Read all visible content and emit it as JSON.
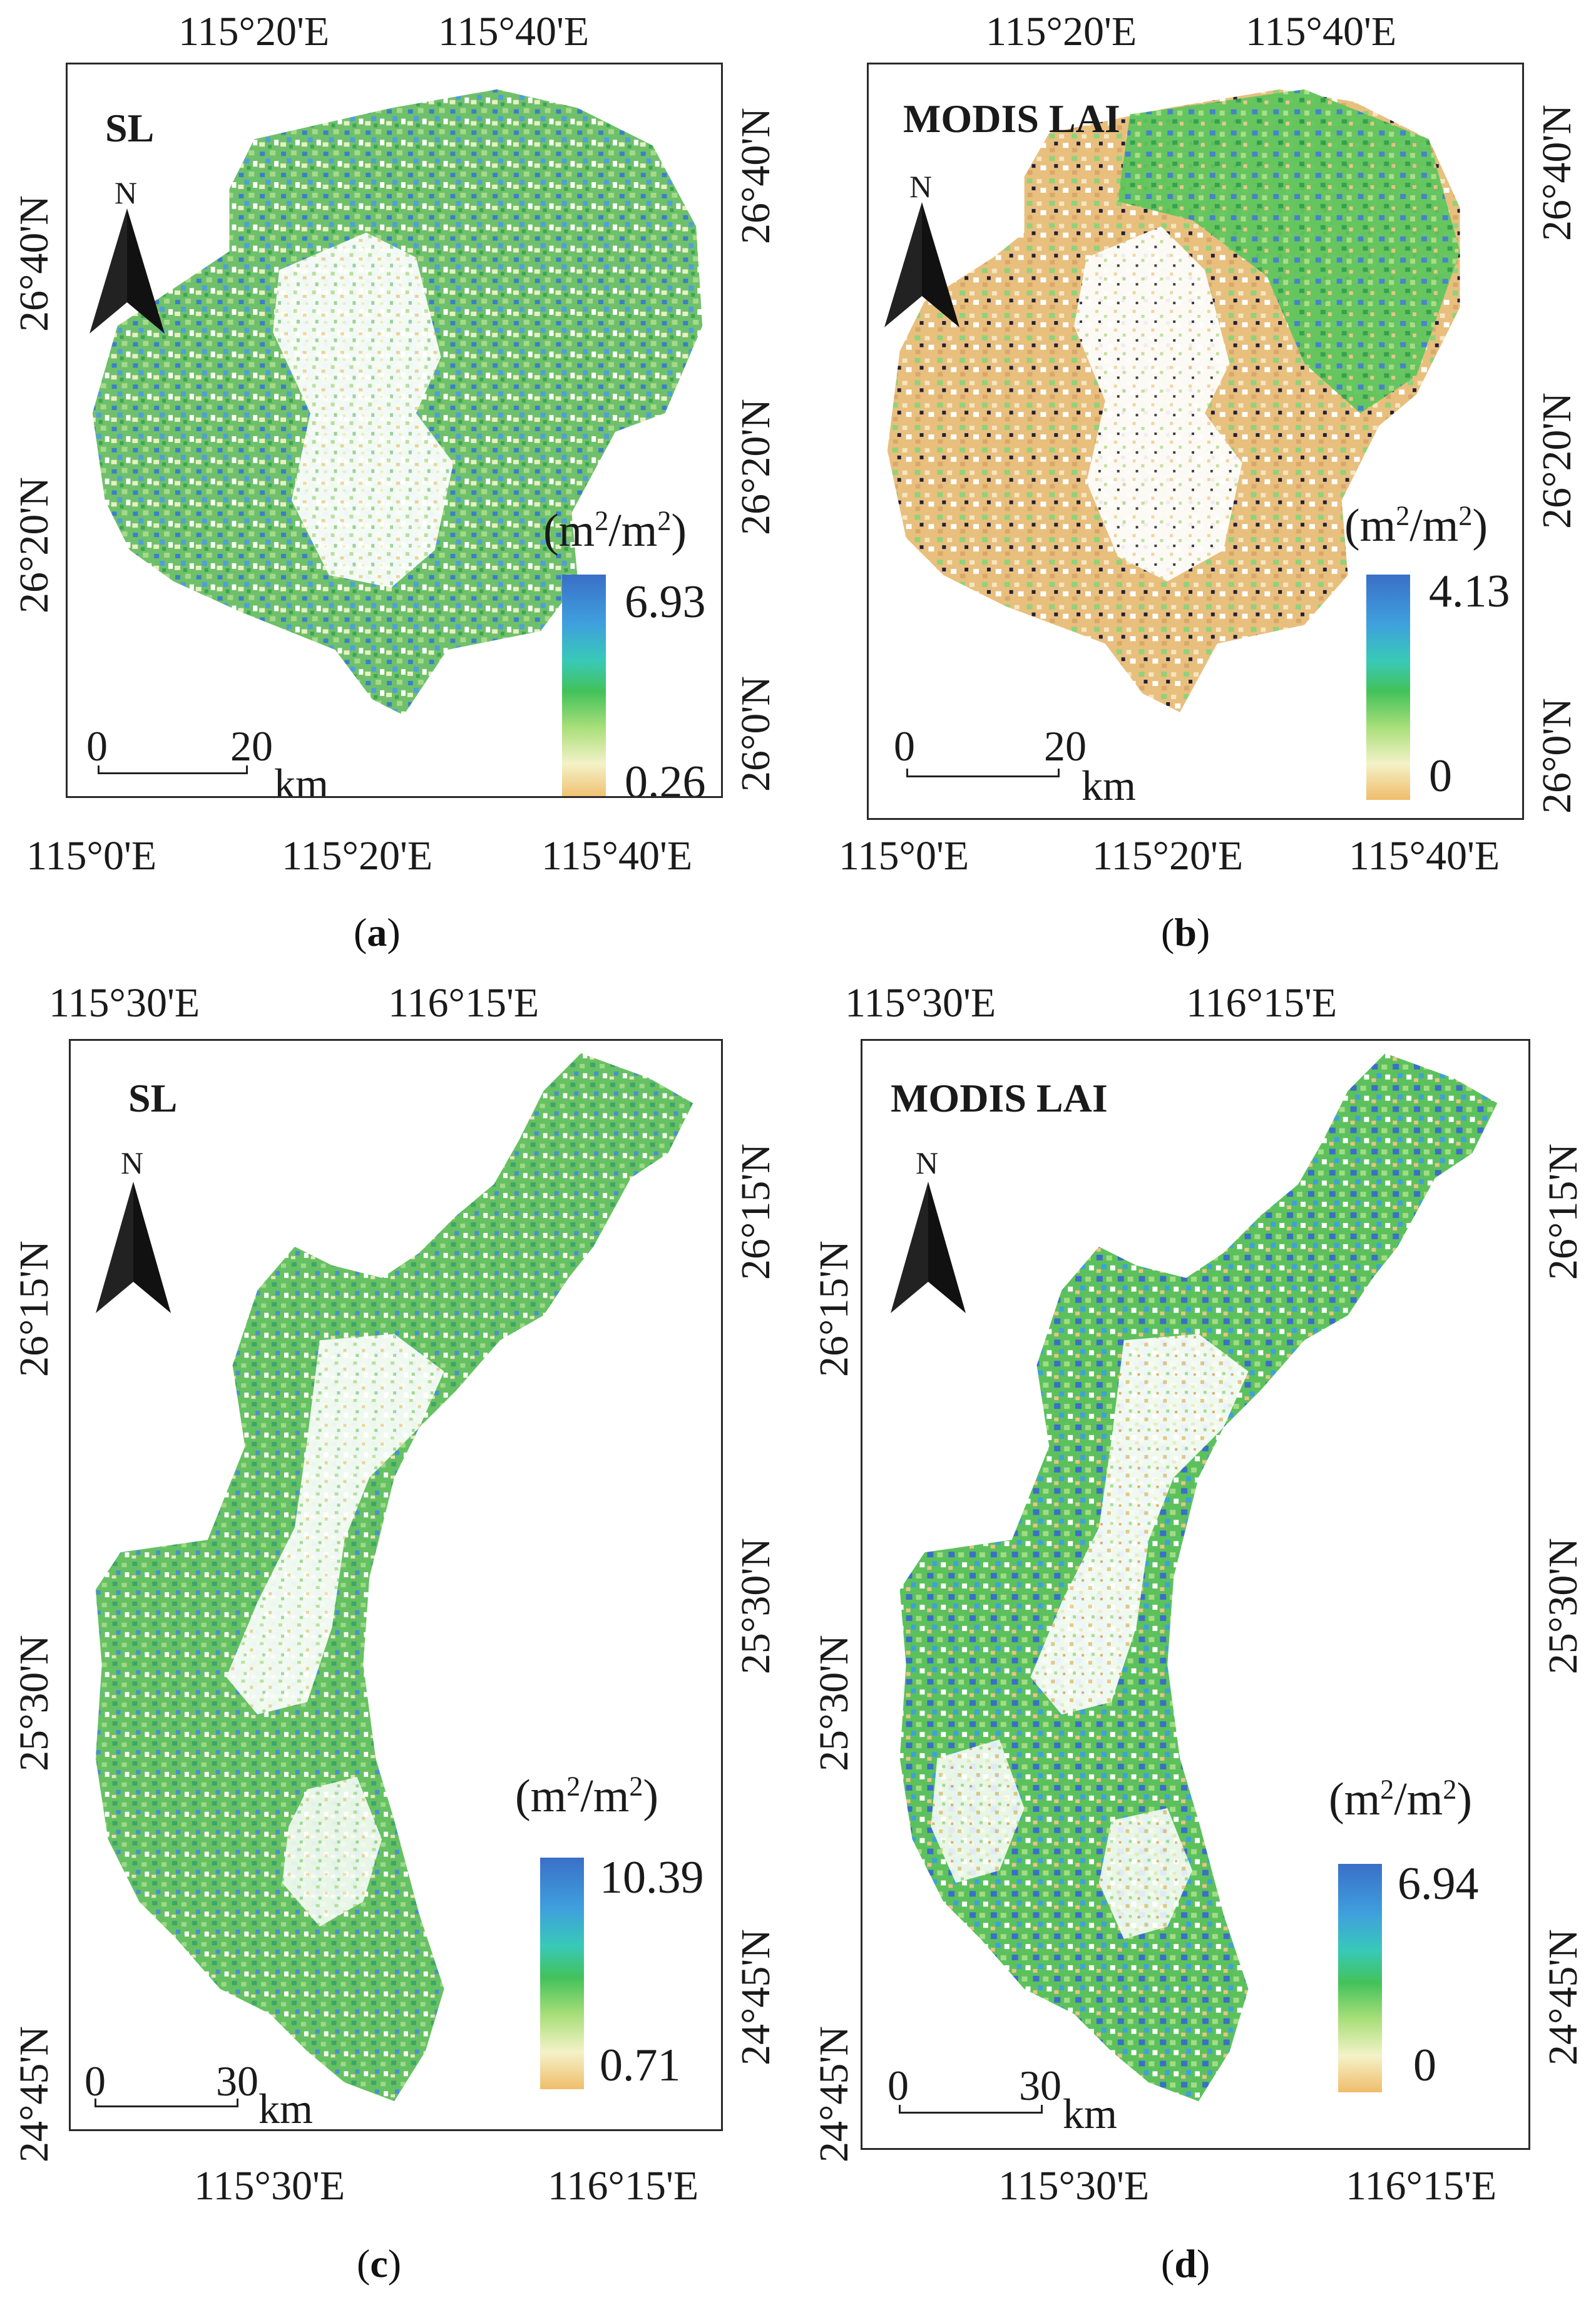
{
  "panels": {
    "a": {
      "caption_open": "(",
      "caption_letter": "a",
      "caption_close": ")",
      "title": "SL",
      "north_label": "N",
      "top_ticks": [
        "115°20'E",
        "115°40'E"
      ],
      "bottom_ticks": [
        "115°0'E",
        "115°20'E",
        "115°40'E"
      ],
      "left_ticks": [
        "26°40'N",
        "26°20'N"
      ],
      "right_ticks": [
        "26°40'N",
        "26°20'N",
        "26°0'N"
      ],
      "legend_unit": "(m2/m2)",
      "legend_max": "6.93",
      "legend_min": "0.26",
      "scale_zero": "0",
      "scale_end": "20",
      "scale_unit": "km"
    },
    "b": {
      "caption_open": "(",
      "caption_letter": "b",
      "caption_close": ")",
      "title": "MODIS LAI",
      "north_label": "N",
      "top_ticks": [
        "115°20'E",
        "115°40'E"
      ],
      "bottom_ticks": [
        "115°0'E",
        "115°20'E",
        "115°40'E"
      ],
      "left_ticks": [],
      "right_ticks": [
        "26°40'N",
        "26°20'N",
        "26°0'N"
      ],
      "legend_unit": "(m2/m2)",
      "legend_max": "4.13",
      "legend_min": "0",
      "scale_zero": "0",
      "scale_end": "20",
      "scale_unit": "km"
    },
    "c": {
      "caption_open": "(",
      "caption_letter": "c",
      "caption_close": ")",
      "title": "SL",
      "north_label": "N",
      "top_ticks": [
        "115°30'E",
        "116°15'E"
      ],
      "bottom_ticks": [
        "115°30'E",
        "116°15'E"
      ],
      "left_ticks": [
        "26°15'N",
        "25°30'N",
        "24°45'N"
      ],
      "right_ticks": [
        "26°15'N",
        "25°30'N",
        "24°45'N"
      ],
      "legend_unit": "(m2/m2)",
      "legend_max": "10.39",
      "legend_min": "0.71",
      "scale_zero": "0",
      "scale_end": "30",
      "scale_unit": "km"
    },
    "d": {
      "caption_open": "(",
      "caption_letter": "d",
      "caption_close": ")",
      "title": "MODIS LAI",
      "north_label": "N",
      "top_ticks": [
        "115°30'E",
        "116°15'E"
      ],
      "bottom_ticks": [
        "115°30'E",
        "116°15'E"
      ],
      "left_ticks": [
        "26°15'N",
        "25°30'N",
        "24°45'N"
      ],
      "right_ticks": [
        "26°15'N",
        "25°30'N",
        "24°45'N"
      ],
      "legend_unit": "(m2/m2)",
      "legend_max": "6.94",
      "legend_min": "0",
      "scale_zero": "0",
      "scale_end": "30",
      "scale_unit": "km"
    }
  },
  "colors": {
    "high": "#3a6fc8",
    "mid_high": "#3fa0dd",
    "mid": "#43c25a",
    "low_mid": "#a9df7a",
    "low": "#f4f2c8",
    "lowest": "#efbd6a"
  }
}
